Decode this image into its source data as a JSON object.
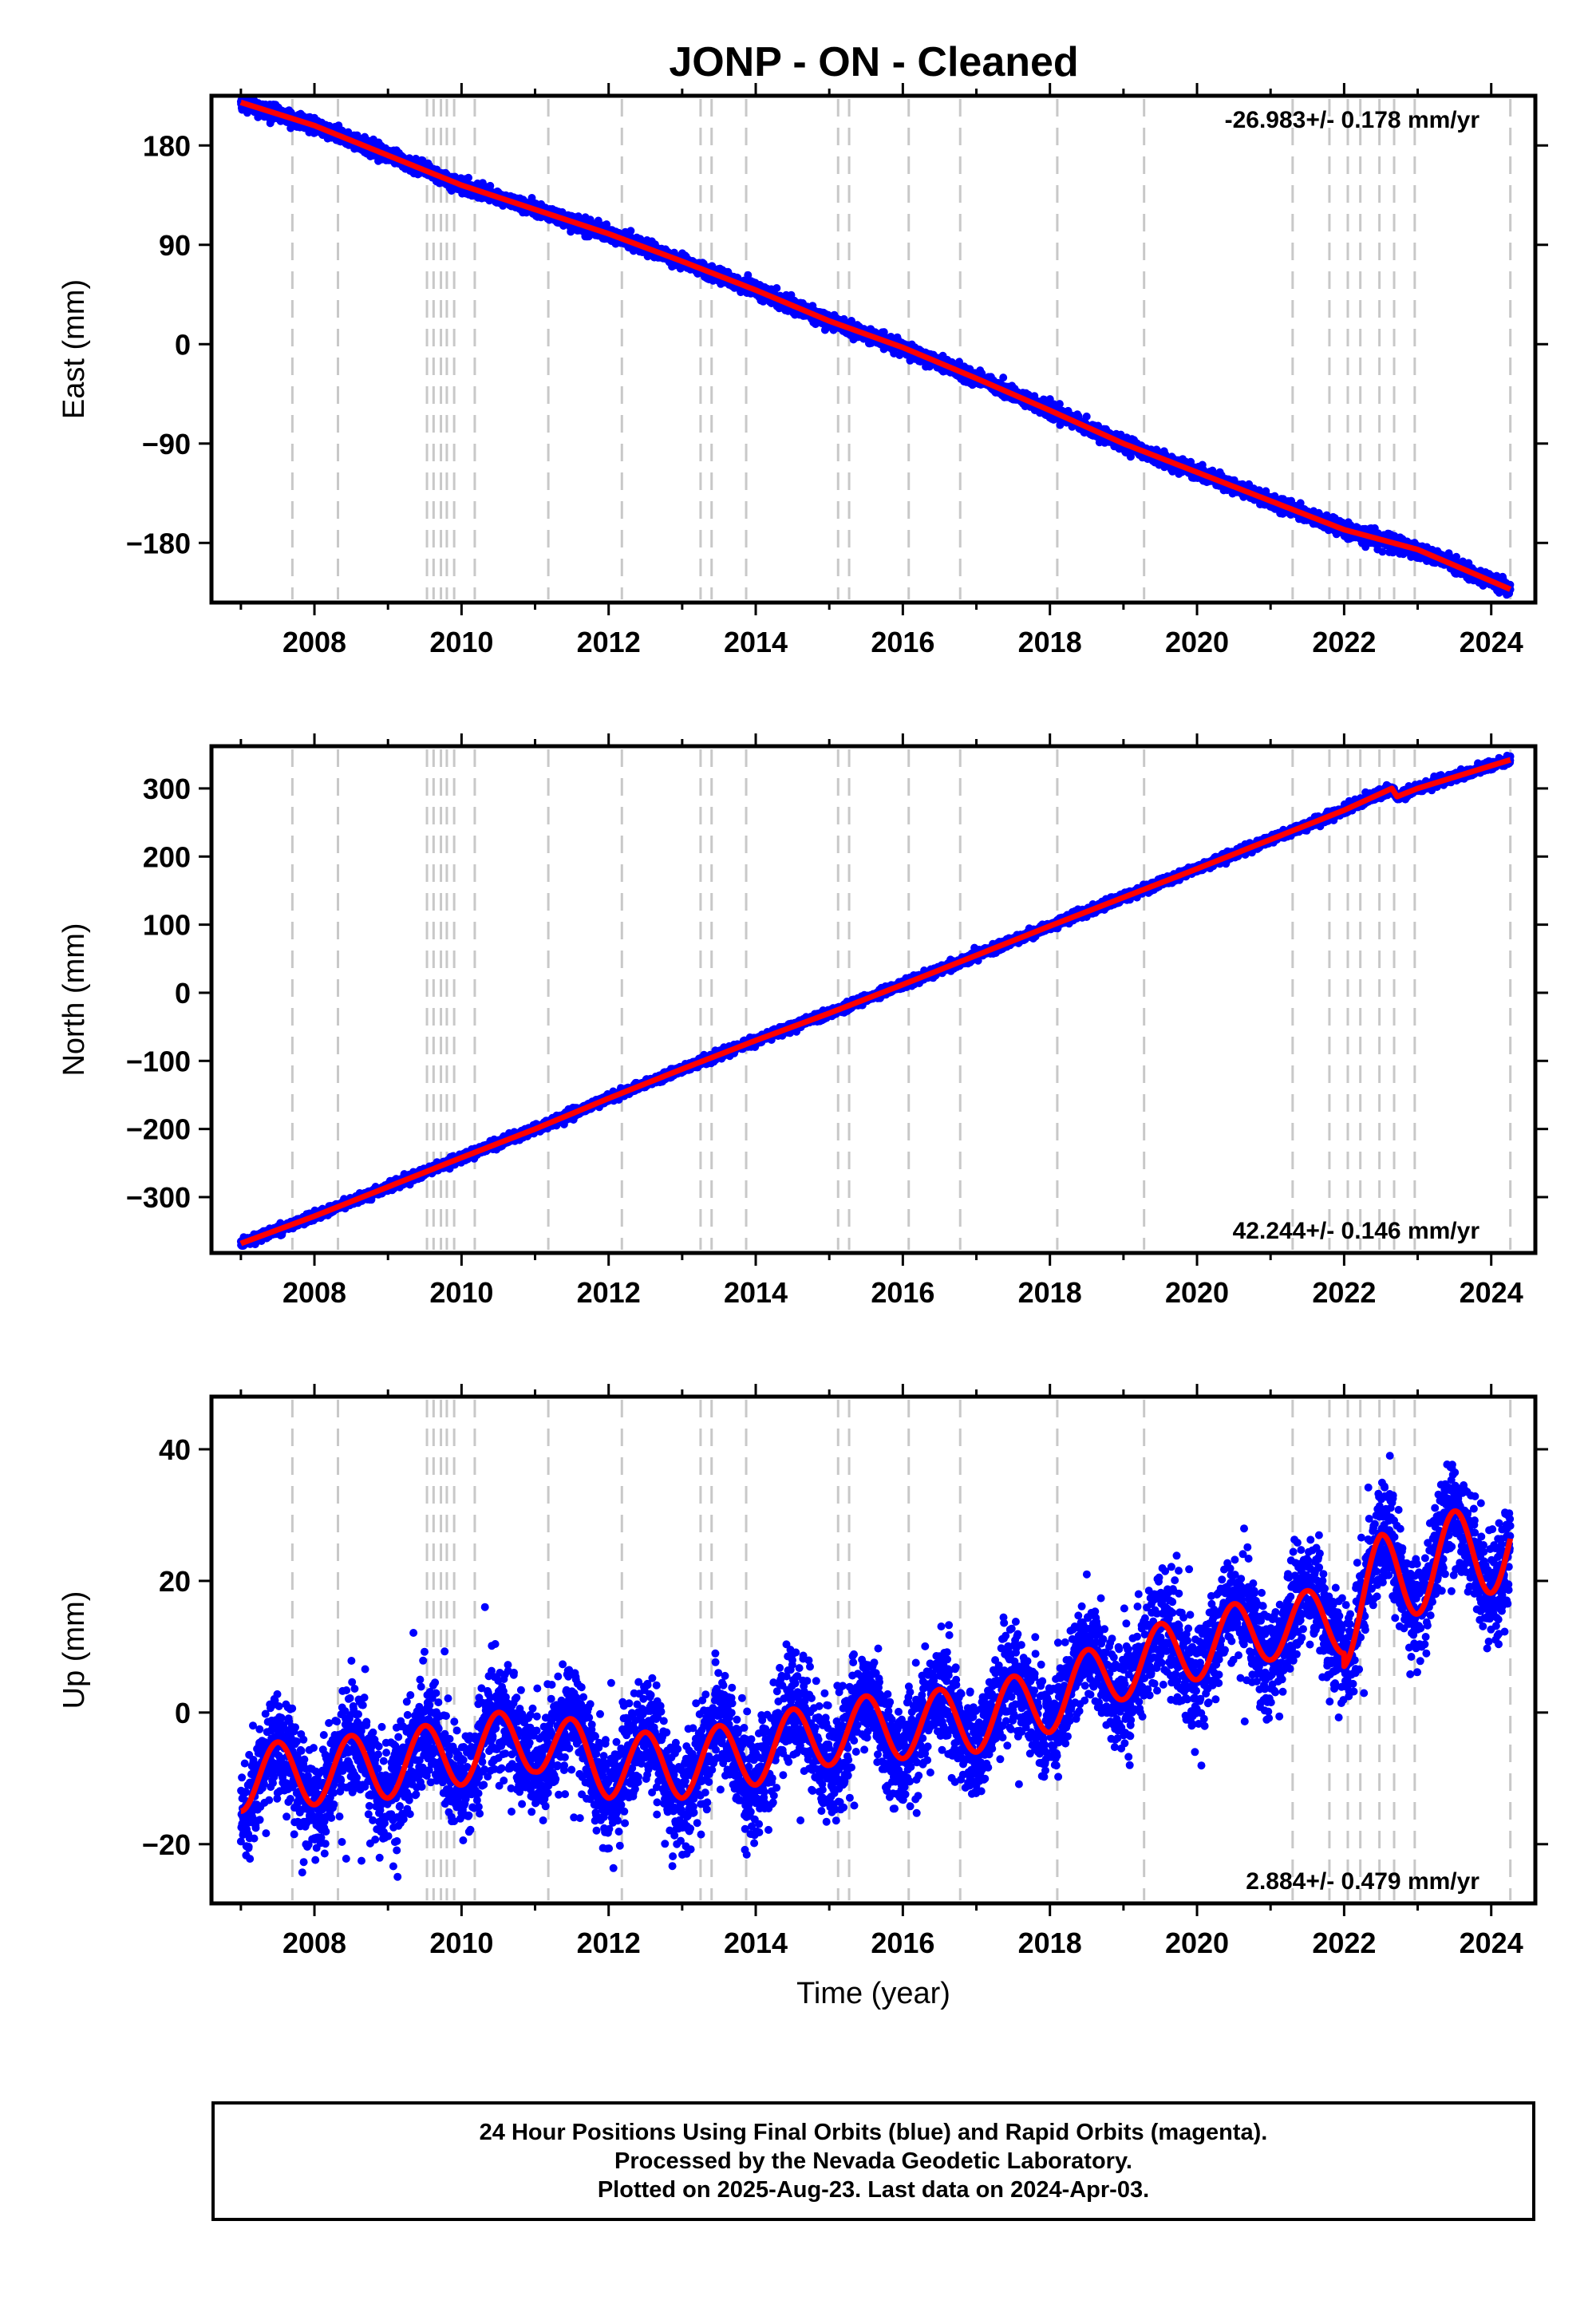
{
  "title": "JONP  - ON - Cleaned",
  "colors": {
    "final_orbits": "#0000ff",
    "model": "#ff0000",
    "event_lines": "#c8c8c8",
    "frame": "#000000"
  },
  "chart_data": [
    {
      "type": "scatter",
      "panel": "east",
      "ylabel": "East (mm)",
      "xlabel": "",
      "rate_label": "-26.983+/- 0.178 mm/yr",
      "rate_position": "top-right",
      "xlim": [
        2006.6,
        2024.6
      ],
      "ylim": [
        -234,
        225
      ],
      "yticks": [
        -180,
        -90,
        0,
        90,
        180
      ],
      "xticks": [
        2008,
        2010,
        2012,
        2014,
        2016,
        2018,
        2020,
        2022,
        2024
      ],
      "x_start": 2007.0,
      "x_end": 2024.26,
      "anchor_x": [
        2007.0,
        2008.0,
        2009.0,
        2010.0,
        2011.0,
        2012.0,
        2013.0,
        2014.0,
        2015.0,
        2016.0,
        2017.0,
        2018.0,
        2019.0,
        2020.0,
        2021.0,
        2022.0,
        2023.0,
        2024.26
      ],
      "anchor_y": [
        219,
        198,
        171,
        144,
        122,
        100,
        75,
        49,
        21,
        -3,
        -31,
        -60,
        -90,
        -116,
        -142,
        -168,
        -186,
        -222
      ],
      "noise_mm": 3,
      "grid": false
    },
    {
      "type": "scatter",
      "panel": "north",
      "ylabel": "North (mm)",
      "xlabel": "",
      "rate_label": "42.244+/- 0.146 mm/yr",
      "rate_position": "bottom-right",
      "xlim": [
        2006.6,
        2024.6
      ],
      "ylim": [
        -382,
        362
      ],
      "yticks": [
        -300,
        -200,
        -100,
        0,
        100,
        200,
        300
      ],
      "xticks": [
        2008,
        2010,
        2012,
        2014,
        2016,
        2018,
        2020,
        2022,
        2024
      ],
      "x_start": 2007.0,
      "x_end": 2024.26,
      "anchor_x": [
        2007.0,
        2008.0,
        2009.0,
        2010.0,
        2011.0,
        2012.0,
        2013.0,
        2014.0,
        2015.0,
        2016.0,
        2017.0,
        2018.0,
        2019.0,
        2020.0,
        2021.0,
        2022.0,
        2022.65,
        2022.72,
        2023.0,
        2024.26
      ],
      "anchor_y": [
        -368,
        -328,
        -285,
        -242,
        -200,
        -155,
        -112,
        -70,
        -30,
        12,
        55,
        98,
        140,
        182,
        225,
        268,
        300,
        288,
        300,
        342
      ],
      "noise_mm": 3,
      "grid": false
    },
    {
      "type": "scatter",
      "panel": "up",
      "ylabel": "Up (mm)",
      "xlabel": "Time (year)",
      "rate_label": "2.884+/- 0.479 mm/yr",
      "rate_position": "bottom-right",
      "xlim": [
        2006.6,
        2024.6
      ],
      "ylim": [
        -29,
        48
      ],
      "yticks": [
        -20,
        0,
        20,
        40
      ],
      "xticks": [
        2008,
        2010,
        2012,
        2014,
        2016,
        2018,
        2020,
        2022,
        2024
      ],
      "x_start": 2007.0,
      "x_end": 2024.26,
      "anchor_x": [
        2007.0,
        2008.0,
        2009.0,
        2010.0,
        2011.0,
        2012.0,
        2013.0,
        2014.0,
        2015.0,
        2016.0,
        2017.0,
        2018.0,
        2019.0,
        2020.0,
        2021.0,
        2022.0,
        2022.5,
        2023.0,
        2024.26
      ],
      "anchor_y": [
        -10,
        -9,
        -8,
        -6,
        -4,
        -8,
        -8,
        -6,
        -3,
        -2,
        -1,
        2,
        7,
        10,
        13,
        14,
        20,
        22,
        26
      ],
      "seasonal_amp_mm": 5,
      "noise_mm": 4,
      "grid": false
    }
  ],
  "event_lines": [
    2007.7,
    2008.32,
    2009.53,
    2009.62,
    2009.72,
    2009.8,
    2009.9,
    2010.18,
    2011.18,
    2012.18,
    2013.25,
    2013.4,
    2013.87,
    2015.12,
    2015.27,
    2016.08,
    2016.78,
    2018.1,
    2019.28,
    2021.3,
    2021.8,
    2022.05,
    2022.22,
    2022.48,
    2022.68,
    2022.96,
    2024.26
  ],
  "footer": {
    "line1": "24 Hour Positions Using Final Orbits (blue) and Rapid Orbits (magenta).",
    "line2": "Processed by the Nevada Geodetic Laboratory.",
    "line3": "Plotted on 2025-Aug-23. Last data on 2024-Apr-03."
  }
}
